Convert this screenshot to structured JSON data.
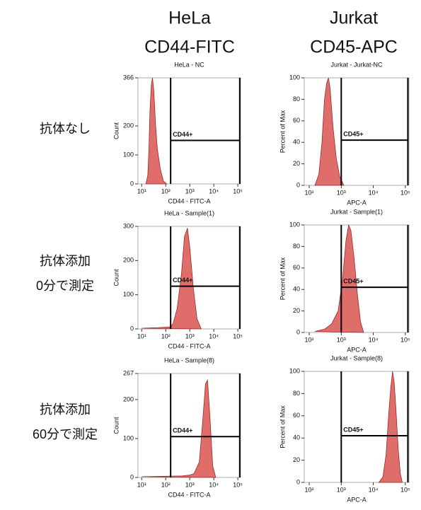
{
  "column_headers": [
    {
      "cell": "HeLa",
      "marker": "CD44-FITC"
    },
    {
      "cell": "Jurkat",
      "marker": "CD45-APC"
    }
  ],
  "row_labels": [
    [
      "抗体なし"
    ],
    [
      "抗体添加",
      "0分で測定"
    ],
    [
      "抗体添加",
      "60分で測定"
    ]
  ],
  "chart_data": [
    {
      "type": "area",
      "title": "HeLa - NC",
      "xlabel": "CD44 - FITC-A",
      "ylabel": "Count",
      "log_x": true,
      "color": "#d9534f",
      "xlim": [
        7,
        130000
      ],
      "xticks": [
        {
          "value": 10,
          "label": "10¹"
        },
        {
          "value": 100,
          "label": "10²"
        },
        {
          "value": 1000,
          "label": "10³"
        },
        {
          "value": 10000,
          "label": "10⁴"
        },
        {
          "value": 100000,
          "label": "10⁵"
        }
      ],
      "ylim": [
        0,
        366
      ],
      "yticks": [
        0,
        100,
        200,
        366
      ],
      "x": [
        15,
        18,
        20,
        22,
        25,
        28,
        32,
        38,
        45,
        60,
        80,
        110
      ],
      "values": [
        0,
        30,
        120,
        250,
        340,
        366,
        320,
        200,
        120,
        50,
        10,
        0
      ],
      "gate": {
        "label": "CD44+",
        "x": [
          160,
          120000
        ],
        "y": 150
      }
    },
    {
      "type": "area",
      "title": "Jurkat - Jurkat-NC",
      "xlabel": "APC-A",
      "ylabel": "Percent of Max",
      "log_x": true,
      "color": "#d9534f",
      "xlim": [
        70,
        130000
      ],
      "xticks": [
        {
          "value": 100,
          "label": "10²"
        },
        {
          "value": 1000,
          "label": "10³"
        },
        {
          "value": 10000,
          "label": "10⁴"
        },
        {
          "value": 100000,
          "label": "10⁵"
        }
      ],
      "ylim": [
        0,
        100
      ],
      "yticks": [
        0,
        20,
        40,
        60,
        80,
        100
      ],
      "x": [
        150,
        200,
        250,
        300,
        350,
        400,
        450,
        550,
        700,
        900,
        1200
      ],
      "values": [
        0,
        10,
        40,
        80,
        95,
        100,
        90,
        55,
        25,
        8,
        0
      ],
      "gate": {
        "label": "CD45+",
        "x": [
          1000,
          120000
        ],
        "y": 42
      }
    },
    {
      "type": "area",
      "title": "HeLa - Sample(1)",
      "xlabel": "CD44 - FITC-A",
      "ylabel": "Count",
      "log_x": true,
      "color": "#d9534f",
      "xlim": [
        7,
        130000
      ],
      "xticks": [
        {
          "value": 10,
          "label": "10¹"
        },
        {
          "value": 100,
          "label": "10²"
        },
        {
          "value": 1000,
          "label": "10³"
        },
        {
          "value": 10000,
          "label": "10⁴"
        },
        {
          "value": 100000,
          "label": "10⁵"
        }
      ],
      "ylim": [
        0,
        300
      ],
      "yticks": [
        0,
        100,
        200,
        300
      ],
      "x": [
        10,
        50,
        150,
        200,
        300,
        450,
        600,
        800,
        1000,
        1400,
        2000,
        3000
      ],
      "values": [
        2,
        4,
        6,
        15,
        60,
        160,
        270,
        295,
        240,
        120,
        30,
        0
      ],
      "gate": {
        "label": "CD44+",
        "x": [
          160,
          120000
        ],
        "y": 125
      }
    },
    {
      "type": "area",
      "title": "Jurkat - Sample(1)",
      "xlabel": "APC-A",
      "ylabel": "Percent of Max",
      "log_x": true,
      "color": "#d9534f",
      "xlim": [
        70,
        130000
      ],
      "xticks": [
        {
          "value": 100,
          "label": "10²"
        },
        {
          "value": 1000,
          "label": "10³"
        },
        {
          "value": 10000,
          "label": "10⁴"
        },
        {
          "value": 100000,
          "label": "10⁵"
        }
      ],
      "ylim": [
        0,
        100
      ],
      "yticks": [
        0,
        20,
        40,
        60,
        80,
        100
      ],
      "x": [
        150,
        300,
        500,
        800,
        1100,
        1400,
        1700,
        2000,
        2500,
        3200,
        4000,
        5000
      ],
      "values": [
        1,
        3,
        8,
        20,
        50,
        85,
        100,
        95,
        70,
        35,
        10,
        0
      ],
      "gate": {
        "label": "CD45+",
        "x": [
          1000,
          120000
        ],
        "y": 42
      }
    },
    {
      "type": "area",
      "title": "HeLa - Sample(8)",
      "xlabel": "CD44 - FITC-A",
      "ylabel": "Count",
      "log_x": true,
      "color": "#d9534f",
      "xlim": [
        7,
        130000
      ],
      "xticks": [
        {
          "value": 10,
          "label": "10¹"
        },
        {
          "value": 100,
          "label": "10²"
        },
        {
          "value": 1000,
          "label": "10³"
        },
        {
          "value": 10000,
          "label": "10⁴"
        },
        {
          "value": 100000,
          "label": "10⁵"
        }
      ],
      "ylim": [
        0,
        267
      ],
      "yticks": [
        0,
        100,
        200,
        267
      ],
      "x": [
        10,
        100,
        500,
        1000,
        1500,
        2500,
        3500,
        4500,
        5500,
        7000,
        9000,
        12000
      ],
      "values": [
        2,
        3,
        4,
        6,
        10,
        40,
        150,
        240,
        250,
        150,
        30,
        0
      ],
      "gate": {
        "label": "CD44+",
        "x": [
          160,
          120000
        ],
        "y": 105
      }
    },
    {
      "type": "area",
      "title": "Jurkat - Sample(8)",
      "xlabel": "APC-A",
      "ylabel": "Percent of Max",
      "log_x": true,
      "color": "#d9534f",
      "xlim": [
        70,
        130000
      ],
      "xticks": [
        {
          "value": 100,
          "label": "10²"
        },
        {
          "value": 1000,
          "label": "10³"
        },
        {
          "value": 10000,
          "label": "10⁴"
        },
        {
          "value": 100000,
          "label": "10⁵"
        }
      ],
      "ylim": [
        0,
        100
      ],
      "yticks": [
        0,
        20,
        40,
        60,
        80,
        100
      ],
      "x": [
        15000,
        20000,
        25000,
        30000,
        35000,
        40000,
        45000,
        50000,
        60000,
        70000,
        80000
      ],
      "values": [
        0,
        5,
        25,
        60,
        85,
        100,
        90,
        70,
        30,
        8,
        0
      ],
      "gate": {
        "label": "CD45+",
        "x": [
          1000,
          120000
        ],
        "y": 42
      }
    }
  ]
}
